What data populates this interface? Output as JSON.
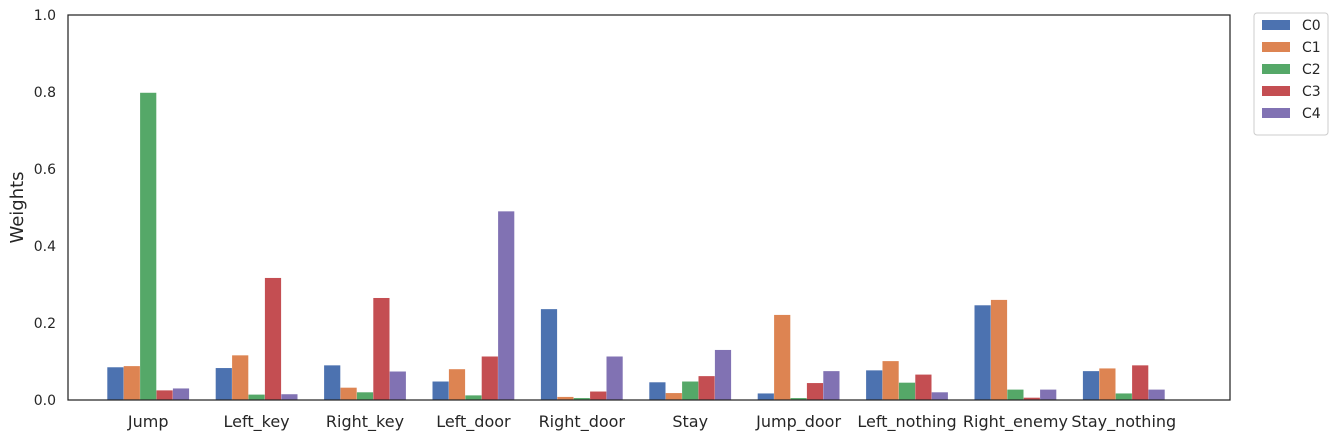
{
  "chart_data": {
    "type": "bar",
    "title": "",
    "xlabel": "",
    "ylabel": "Weights",
    "ylim": [
      0,
      1.0
    ],
    "yticks": [
      "0.0",
      "0.2",
      "0.4",
      "0.6",
      "0.8",
      "1.0"
    ],
    "categories": [
      "Jump",
      "Left_key",
      "Right_key",
      "Left_door",
      "Right_door",
      "Stay",
      "Jump_door",
      "Left_nothing",
      "Right_enemy",
      "Stay_nothing"
    ],
    "series": [
      {
        "name": "C0",
        "color": "#4c72b0",
        "values": [
          0.085,
          0.083,
          0.09,
          0.048,
          0.236,
          0.046,
          0.017,
          0.077,
          0.246,
          0.075
        ]
      },
      {
        "name": "C1",
        "color": "#dd8452",
        "values": [
          0.088,
          0.116,
          0.032,
          0.08,
          0.008,
          0.018,
          0.221,
          0.101,
          0.26,
          0.082
        ]
      },
      {
        "name": "C2",
        "color": "#55a868",
        "values": [
          0.798,
          0.014,
          0.02,
          0.012,
          0.005,
          0.048,
          0.005,
          0.045,
          0.027,
          0.017
        ]
      },
      {
        "name": "C3",
        "color": "#c44e52",
        "values": [
          0.025,
          0.317,
          0.265,
          0.113,
          0.022,
          0.062,
          0.044,
          0.066,
          0.006,
          0.09
        ]
      },
      {
        "name": "C4",
        "color": "#8172b3",
        "values": [
          0.03,
          0.015,
          0.074,
          0.49,
          0.113,
          0.13,
          0.075,
          0.02,
          0.027,
          0.027
        ]
      }
    ],
    "grid": false,
    "legend_position": "outside top-right"
  }
}
